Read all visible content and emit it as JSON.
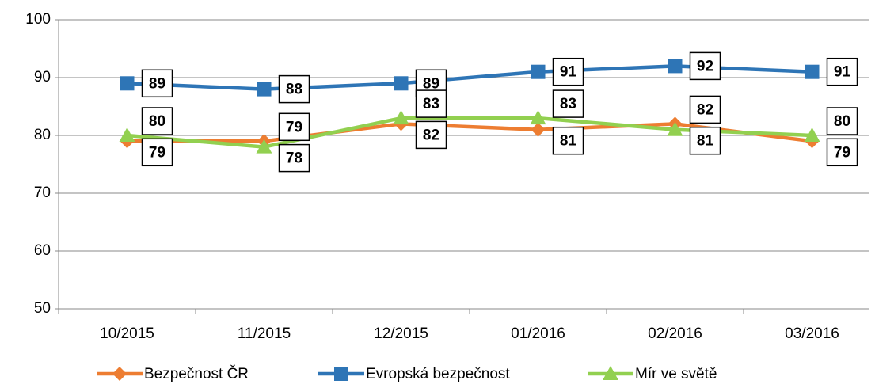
{
  "chart_data": {
    "type": "line",
    "categories": [
      "10/2015",
      "11/2015",
      "12/2015",
      "01/2016",
      "02/2016",
      "03/2016"
    ],
    "series": [
      {
        "name": "Bezpečnost ČR",
        "color": "#ed7d31",
        "marker": "diamond",
        "values": [
          79,
          79,
          82,
          81,
          82,
          79
        ]
      },
      {
        "name": "Evropská bezpečnost",
        "color": "#2e75b6",
        "marker": "square",
        "values": [
          89,
          88,
          89,
          91,
          92,
          91
        ]
      },
      {
        "name": "Mír ve světě",
        "color": "#92d050",
        "marker": "triangle",
        "values": [
          80,
          78,
          83,
          83,
          81,
          80
        ]
      }
    ],
    "ylim": [
      50,
      100
    ],
    "yticks": [
      50,
      60,
      70,
      80,
      90,
      100
    ],
    "grid": true,
    "legend": "bottom"
  }
}
